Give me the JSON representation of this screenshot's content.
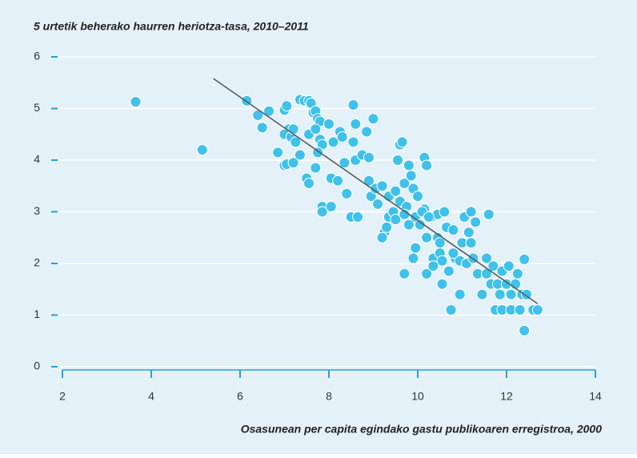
{
  "chart_data": {
    "type": "scatter",
    "title": "5 urtetik beherako haurren heriotza-tasa, 2010–2011",
    "x_label": "Osasunean per capita egindako gastu publikoaren erregistroa, 2000",
    "color": "#3fc1ea",
    "x": [
      3.65,
      5.15,
      6.15,
      6.4,
      6.5,
      6.65,
      6.85,
      7.0,
      7.05,
      7.1,
      7.0,
      7.15,
      7.2,
      7.25,
      7.35,
      7.45,
      7.55,
      7.6,
      7.65,
      7.7,
      7.75,
      7.8,
      7.55,
      7.7,
      7.8,
      7.85,
      8.0,
      8.1,
      8.25,
      8.3,
      7.0,
      7.05,
      7.2,
      7.35,
      7.5,
      7.55,
      7.7,
      7.75,
      7.85,
      7.85,
      8.05,
      8.05,
      8.2,
      8.4,
      8.35,
      8.5,
      8.55,
      8.6,
      8.6,
      8.55,
      8.65,
      8.75,
      8.85,
      8.9,
      9.0,
      8.9,
      8.95,
      9.05,
      9.1,
      9.2,
      9.25,
      9.3,
      9.35,
      9.35,
      9.45,
      9.5,
      9.5,
      9.55,
      9.6,
      9.65,
      9.6,
      9.7,
      9.75,
      9.8,
      9.85,
      9.8,
      9.9,
      9.7,
      9.7,
      9.95,
      10.0,
      10.05,
      9.95,
      9.9,
      10.15,
      10.2,
      10.15,
      10.2,
      10.3,
      10.2,
      10.35,
      10.45,
      10.45,
      10.5,
      10.5,
      10.55,
      10.6,
      10.55,
      10.65,
      10.7,
      10.75,
      10.8,
      10.85,
      10.95,
      10.95,
      11.0,
      11.05,
      11.1,
      11.15,
      11.2,
      11.2,
      11.25,
      11.3,
      11.35,
      11.45,
      11.55,
      11.6,
      11.55,
      11.65,
      11.7,
      11.75,
      11.8,
      11.85,
      11.9,
      11.9,
      12.0,
      12.05,
      12.1,
      12.1,
      12.2,
      12.25,
      12.3,
      12.35,
      12.4,
      12.4,
      12.45,
      12.6,
      12.7,
      10.1,
      10.25,
      10.35,
      10.8,
      9.2
    ],
    "values": [
      5.13,
      4.2,
      5.15,
      4.87,
      4.63,
      4.95,
      4.15,
      4.97,
      5.05,
      4.6,
      4.5,
      4.45,
      4.6,
      4.35,
      5.17,
      5.15,
      5.15,
      5.1,
      4.92,
      4.95,
      4.8,
      4.75,
      4.5,
      4.6,
      4.4,
      4.3,
      4.7,
      4.35,
      4.55,
      4.45,
      3.9,
      3.92,
      3.95,
      4.1,
      3.65,
      3.55,
      3.85,
      4.15,
      3.1,
      3.0,
      3.65,
      3.1,
      3.6,
      3.35,
      3.95,
      2.9,
      5.07,
      4.7,
      4.0,
      4.35,
      2.9,
      4.1,
      4.55,
      4.05,
      4.8,
      3.6,
      3.3,
      3.45,
      3.15,
      3.5,
      2.6,
      2.7,
      2.9,
      3.3,
      3.0,
      2.85,
      3.4,
      4.0,
      4.3,
      4.35,
      3.2,
      3.55,
      3.1,
      3.9,
      3.7,
      2.75,
      3.45,
      2.95,
      1.8,
      2.9,
      3.3,
      2.75,
      2.3,
      2.1,
      4.05,
      3.9,
      3.05,
      2.5,
      2.9,
      1.8,
      2.1,
      2.5,
      2.95,
      2.4,
      2.2,
      2.05,
      3.0,
      1.6,
      2.7,
      1.85,
      1.1,
      2.65,
      2.1,
      1.4,
      2.05,
      2.4,
      2.9,
      2.0,
      2.6,
      3.0,
      2.4,
      2.1,
      2.8,
      1.8,
      1.4,
      2.1,
      2.95,
      1.8,
      1.6,
      1.95,
      1.1,
      1.6,
      1.4,
      1.85,
      1.1,
      1.6,
      1.95,
      1.4,
      1.1,
      1.6,
      1.8,
      1.1,
      1.4,
      2.08,
      0.7,
      1.4,
      1.1,
      1.1,
      3.0,
      2.9,
      1.95,
      2.2,
      2.5
    ],
    "trendline": {
      "x": [
        5.4,
        12.7
      ],
      "values": [
        5.58,
        1.22
      ],
      "color": "#555555"
    },
    "xlim": [
      2,
      14
    ],
    "xticks": [
      2,
      4,
      6,
      8,
      10,
      12,
      14
    ],
    "ylim": [
      0,
      6
    ],
    "yticks": [
      0,
      1,
      2,
      3,
      4,
      5,
      6
    ],
    "grid": true
  }
}
